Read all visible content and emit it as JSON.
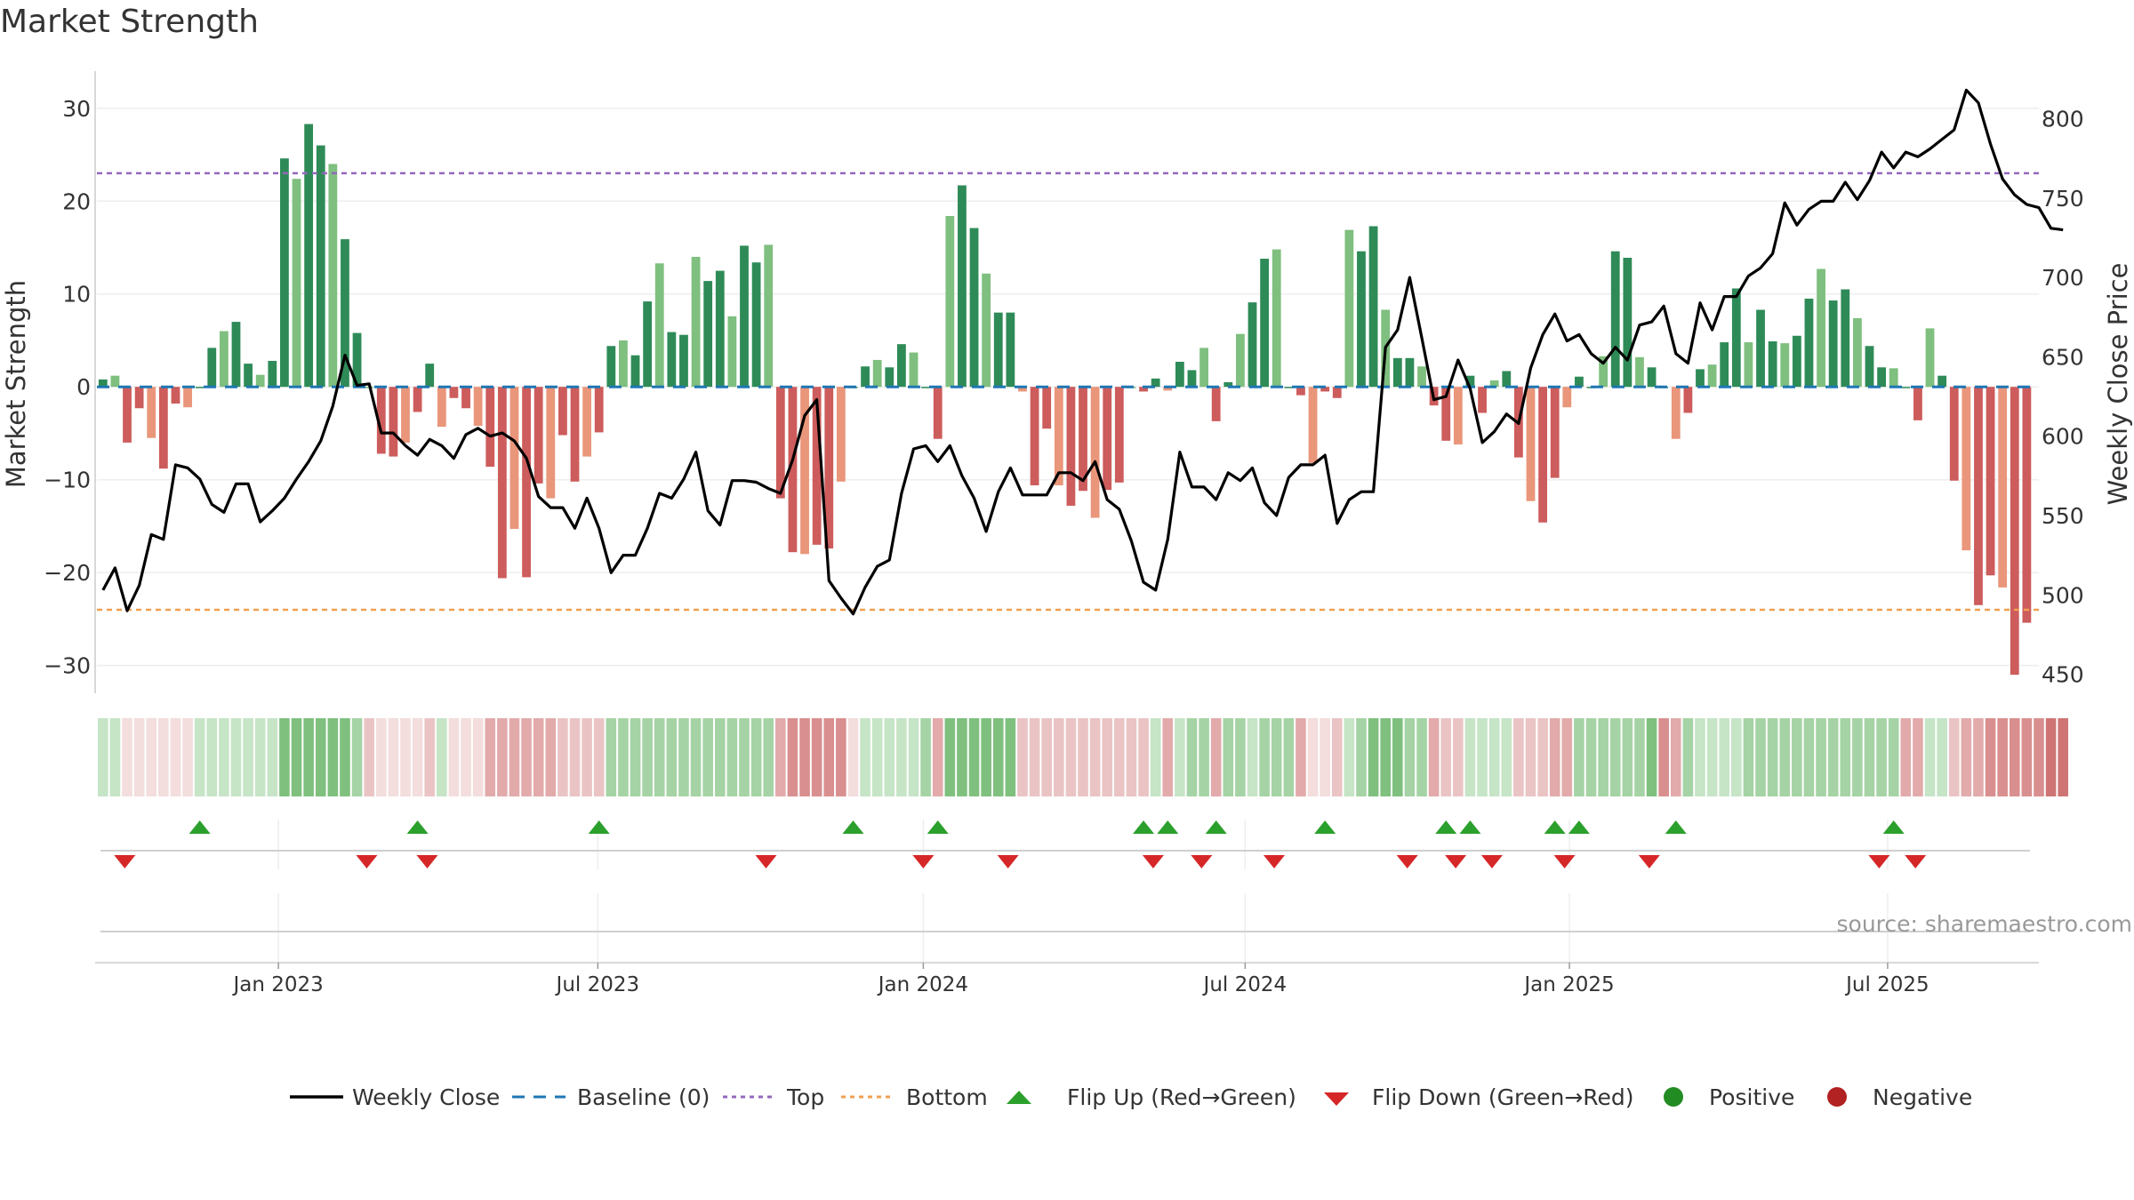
{
  "title": "Market Strength",
  "source": "source: sharemaestro.com",
  "colors": {
    "strong_pos": "#2e8b57",
    "light_pos": "#7fbf7f",
    "strong_neg": "#cd5c5c",
    "light_neg": "#e9967a",
    "line": "#000000",
    "baseline": "#1f77b4",
    "top": "#9467bd",
    "bottom": "#f0a050",
    "flip_up": "#2ca02c",
    "flip_down": "#d62728",
    "positive": "#228b22",
    "negative": "#b22222"
  },
  "chart_data": {
    "type": "bar+line",
    "title": "Market Strength",
    "ylabel_left": "Market Strength",
    "ylabel_right": "Weekly Close Price",
    "ylim_left": [
      -33,
      34
    ],
    "ylim_right": [
      438,
      830
    ],
    "yticks_left": [
      30,
      20,
      10,
      0,
      -10,
      -20,
      -30
    ],
    "yticks_right": [
      800,
      750,
      700,
      650,
      600,
      550,
      500,
      450
    ],
    "xlim_weeks": [
      0,
      160.5
    ],
    "x_ticks": [
      {
        "label": "Jan 2023",
        "week": 15
      },
      {
        "label": "Jul 2023",
        "week": 41.4
      },
      {
        "label": "Jan 2024",
        "week": 68.3
      },
      {
        "label": "Jul 2024",
        "week": 94.9
      },
      {
        "label": "Jan 2025",
        "week": 121.7
      },
      {
        "label": "Jul 2025",
        "week": 148
      }
    ],
    "thresholds": {
      "top": 23,
      "bottom": -24,
      "baseline": 0
    },
    "strength_values": [
      0.8,
      1.2,
      -6,
      -2.3,
      -5.5,
      -8.8,
      -1.8,
      -2.2,
      0,
      4.2,
      6,
      7,
      2.5,
      1.3,
      2.8,
      24.6,
      22.4,
      28.3,
      26,
      24,
      15.9,
      5.8,
      0,
      -7.2,
      -7.5,
      -6,
      -2.7,
      2.5,
      -4.3,
      -1.2,
      -2.3,
      -4.2,
      -8.6,
      -20.6,
      -15.3,
      -20.5,
      -10.4,
      -12,
      -5.2,
      -10.2,
      -7.5,
      -4.9,
      4.4,
      5,
      3.4,
      9.2,
      13.3,
      5.9,
      5.6,
      14,
      11.4,
      12.5,
      7.6,
      15.2,
      13.4,
      15.3,
      -12,
      -17.8,
      -18,
      -17,
      -17.4,
      -10.2,
      0,
      2.2,
      2.9,
      2.1,
      4.6,
      3.7,
      0,
      -5.6,
      18.4,
      21.7,
      17.1,
      12.2,
      8,
      8,
      -0.5,
      -10.6,
      -4.5,
      -10.6,
      -12.8,
      -11.2,
      -14.1,
      -11.1,
      -10.3,
      0,
      -0.5,
      0.9,
      -0.4,
      2.7,
      1.8,
      4.2,
      -3.7,
      0.5,
      5.7,
      9.1,
      13.8,
      14.8,
      0,
      -0.9,
      -8.2,
      -0.5,
      -1.2,
      16.9,
      14.6,
      17.3,
      8.3,
      3.1,
      3.1,
      2.2,
      -2,
      -5.8,
      -6.2,
      1.2,
      -2.8,
      0.7,
      1.7,
      -7.6,
      -12.3,
      -14.6,
      -9.8,
      -2.2,
      1.1,
      0,
      3.3,
      14.6,
      13.9,
      3.2,
      2.1,
      0,
      -5.6,
      -2.8,
      1.9,
      2.4,
      4.8,
      10.6,
      4.8,
      8.3,
      4.9,
      4.7,
      5.5,
      9.5,
      12.7,
      9.3,
      10.5,
      7.4,
      4.4,
      2.1,
      2,
      0,
      -3.6,
      6.3,
      1.2,
      -10.1,
      -17.6,
      -23.5,
      -20.3,
      -21.6,
      -31,
      -25.4
    ],
    "weekly_close": [
      503,
      517,
      490,
      506,
      538,
      535,
      582,
      580,
      573,
      557,
      552,
      570,
      570,
      546,
      553,
      561,
      573,
      584,
      597,
      619,
      651,
      632,
      633,
      602,
      602,
      594,
      588,
      598,
      594,
      586,
      601,
      605,
      600,
      602,
      597,
      586,
      562,
      555,
      555,
      542,
      561,
      542,
      514,
      525,
      525,
      542,
      564,
      561,
      573,
      590,
      553,
      544,
      572,
      572,
      571,
      567,
      564,
      585,
      613,
      623,
      509,
      498,
      488,
      505,
      518,
      522,
      564,
      592,
      594,
      584,
      594,
      575,
      561,
      540,
      565,
      580,
      563,
      563,
      563,
      577,
      577,
      572,
      584,
      560,
      554,
      534,
      508,
      503,
      535,
      590,
      568,
      568,
      560,
      577,
      572,
      580,
      558,
      550,
      574,
      582,
      582,
      588,
      545,
      560,
      565,
      565,
      656,
      667,
      700,
      662,
      623,
      625,
      648,
      630,
      596,
      603,
      614,
      608,
      643,
      664,
      677,
      660,
      664,
      652,
      646,
      656,
      648,
      670,
      672,
      682,
      652,
      646,
      684,
      667,
      688,
      688,
      701,
      706,
      715,
      747,
      733,
      743,
      748,
      748,
      760,
      749,
      761,
      779,
      769,
      779,
      776,
      781,
      787,
      793,
      818,
      810,
      784,
      762,
      752,
      746,
      744,
      731,
      730
    ],
    "color_strip_shades": [
      1,
      1,
      0,
      0,
      0,
      0,
      0,
      0,
      1,
      1,
      1,
      1,
      1,
      1,
      1,
      3,
      3,
      3,
      3,
      3,
      3,
      2,
      1,
      0,
      0,
      0,
      0,
      1,
      1,
      0,
      0,
      0,
      2,
      2,
      2,
      2,
      2,
      2,
      1,
      1,
      1,
      1,
      2,
      2,
      2,
      2,
      2,
      2,
      2,
      2,
      2,
      2,
      2,
      2,
      2,
      2,
      2,
      3,
      3,
      3,
      3,
      3,
      0,
      1,
      1,
      1,
      1,
      1,
      2,
      2,
      3,
      3,
      3,
      3,
      3,
      3,
      1,
      1,
      1,
      1,
      1,
      1,
      1,
      1,
      1,
      1,
      1,
      1,
      2,
      1,
      2,
      2,
      2,
      2,
      2,
      1,
      2,
      2,
      2,
      2,
      0,
      0,
      1,
      1,
      2,
      3,
      3,
      3,
      2,
      2,
      2,
      1,
      1,
      1,
      1,
      1,
      1,
      1,
      1,
      1,
      2,
      2,
      2,
      2,
      2,
      2,
      2,
      2,
      3,
      3,
      2,
      2,
      1,
      1,
      1,
      1,
      2,
      2,
      2,
      2,
      2,
      2,
      2,
      2,
      2,
      2,
      2,
      2,
      2,
      2,
      2,
      1,
      1,
      1,
      2,
      2,
      3,
      3,
      3,
      3,
      3,
      4,
      4
    ],
    "color_strip_signs": [
      1,
      1,
      -1,
      -1,
      -1,
      -1,
      -1,
      -1,
      1,
      1,
      1,
      1,
      1,
      1,
      1,
      1,
      1,
      1,
      1,
      1,
      1,
      1,
      -1,
      -1,
      -1,
      -1,
      -1,
      -1,
      1,
      -1,
      -1,
      -1,
      -1,
      -1,
      -1,
      -1,
      -1,
      -1,
      -1,
      -1,
      -1,
      -1,
      1,
      1,
      1,
      1,
      1,
      1,
      1,
      1,
      1,
      1,
      1,
      1,
      1,
      1,
      -1,
      -1,
      -1,
      -1,
      -1,
      -1,
      -1,
      1,
      1,
      1,
      1,
      1,
      1,
      -1,
      1,
      1,
      1,
      1,
      1,
      1,
      -1,
      -1,
      -1,
      -1,
      -1,
      -1,
      -1,
      -1,
      -1,
      -1,
      -1,
      1,
      -1,
      1,
      1,
      1,
      -1,
      1,
      1,
      1,
      1,
      1,
      1,
      -1,
      -1,
      -1,
      -1,
      1,
      1,
      1,
      1,
      1,
      1,
      1,
      -1,
      -1,
      -1,
      1,
      1,
      1,
      1,
      -1,
      -1,
      -1,
      -1,
      -1,
      1,
      1,
      1,
      1,
      1,
      1,
      1,
      -1,
      -1,
      1,
      1,
      1,
      1,
      1,
      1,
      1,
      1,
      1,
      1,
      1,
      1,
      1,
      1,
      1,
      1,
      1,
      1,
      -1,
      -1,
      1,
      1,
      -1,
      -1,
      -1,
      -1,
      -1,
      -1,
      -1
    ],
    "flip_up_weeks": [
      8.5,
      26.5,
      41.5,
      62.5,
      69.5,
      86.5,
      88.5,
      92.5,
      101.5,
      111.5,
      113.5,
      120.5,
      122.5,
      130.5,
      148.5
    ],
    "flip_down_weeks": [
      2.3,
      22.3,
      27.3,
      55.3,
      68.3,
      75.3,
      87.3,
      91.3,
      97.3,
      108.3,
      112.3,
      115.3,
      121.3,
      128.3,
      147.3,
      150.3
    ],
    "legend": [
      "Weekly Close",
      "Baseline (0)",
      "Top",
      "Bottom",
      "Flip Up (Red→Green)",
      "Flip Down (Green→Red)",
      "Positive",
      "Negative"
    ]
  }
}
